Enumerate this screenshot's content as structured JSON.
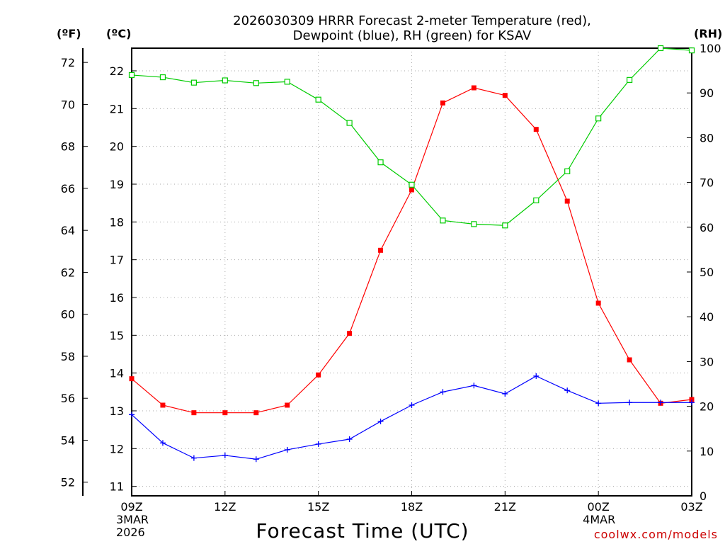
{
  "chart_data": {
    "type": "line",
    "title_line1": "2026030309 HRRR Forecast 2-meter Temperature (red),",
    "title_line2": "Dewpoint (blue), RH (green) for KSAV",
    "unit_f": "(ºF)",
    "unit_c": "(ºC)",
    "unit_rh": "(RH)",
    "xlabel": "Forecast Time (UTC)",
    "credit": "coolwx.com/models",
    "x_ticks": [
      {
        "x": 0,
        "label": "09Z"
      },
      {
        "x": 3,
        "label": "12Z"
      },
      {
        "x": 6,
        "label": "15Z"
      },
      {
        "x": 9,
        "label": "18Z"
      },
      {
        "x": 12,
        "label": "21Z"
      },
      {
        "x": 15,
        "label": "00Z"
      },
      {
        "x": 18,
        "label": "03Z"
      }
    ],
    "date_labels": [
      {
        "x": 0,
        "line1": "3MAR",
        "line2": "2026"
      },
      {
        "x": 15,
        "line1": "4MAR",
        "line2": ""
      }
    ],
    "xlim": [
      0,
      18
    ],
    "ylim_c": [
      10.75,
      22.6
    ],
    "ylim_rh": [
      0,
      100
    ],
    "ylim_f": [
      51.35,
      72.68
    ],
    "c_ticks": [
      11,
      12,
      13,
      14,
      15,
      16,
      17,
      18,
      19,
      20,
      21,
      22
    ],
    "f_ticks": [
      52,
      54,
      56,
      58,
      60,
      62,
      64,
      66,
      68,
      70,
      72
    ],
    "rh_ticks": [
      0,
      10,
      20,
      30,
      40,
      50,
      60,
      70,
      80,
      90,
      100
    ],
    "series": [
      {
        "name": "2-meter Temperature",
        "color": "#ff0000",
        "marker": "filled-square",
        "axis": "c",
        "values": [
          13.85,
          13.15,
          12.95,
          12.95,
          12.95,
          13.15,
          13.95,
          15.05,
          17.25,
          18.85,
          21.15,
          21.55,
          21.35,
          20.45,
          18.55,
          15.85,
          14.35,
          13.2,
          13.3
        ]
      },
      {
        "name": "Dewpoint",
        "color": "#0000ff",
        "marker": "plus",
        "axis": "c",
        "values": [
          12.9,
          12.15,
          11.75,
          11.82,
          11.72,
          11.97,
          12.12,
          12.25,
          12.72,
          13.15,
          13.5,
          13.67,
          13.45,
          13.92,
          13.54,
          13.2,
          13.22,
          13.22,
          13.22
        ]
      },
      {
        "name": "RH",
        "color": "#00cc00",
        "marker": "open-square",
        "axis": "rh",
        "values": [
          94,
          93.5,
          92.3,
          92.8,
          92.2,
          92.5,
          88.5,
          83.3,
          74.5,
          69.5,
          61.5,
          60.7,
          60.4,
          66,
          72.5,
          84.3,
          92.9,
          100,
          99.5
        ]
      }
    ]
  }
}
